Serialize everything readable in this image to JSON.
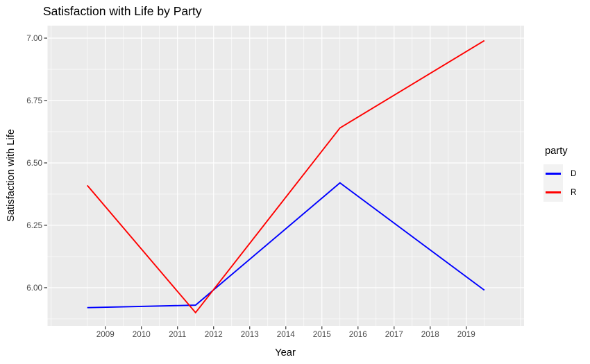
{
  "chart_data": {
    "type": "line",
    "title": "Satisfaction with Life by Party",
    "xlabel": "Year",
    "ylabel": "Satisfaction with Life",
    "x_ticks": [
      2009,
      2010,
      2011,
      2012,
      2013,
      2014,
      2015,
      2016,
      2017,
      2018,
      2019
    ],
    "x_minor_ticks": [
      2007.5,
      2008.5,
      2009.5,
      2010.5,
      2011.5,
      2012.5,
      2013.5,
      2014.5,
      2015.5,
      2016.5,
      2017.5,
      2018.5,
      2019.5,
      2020.5
    ],
    "y_ticks": [
      {
        "value": 6.0,
        "label": "6.00"
      },
      {
        "value": 6.25,
        "label": "6.25"
      },
      {
        "value": 6.5,
        "label": "6.50"
      },
      {
        "value": 6.75,
        "label": "6.75"
      },
      {
        "value": 7.0,
        "label": "7.00"
      }
    ],
    "y_minor_ticks": [
      5.875,
      6.125,
      6.375,
      6.625,
      6.875
    ],
    "xlim": [
      2007.4,
      2020.6
    ],
    "ylim": [
      5.847,
      7.05
    ],
    "grid": {
      "major": true,
      "minor": true
    },
    "series": [
      {
        "name": "D",
        "color": "#0000FF",
        "x": [
          2008.5,
          2011.5,
          2015.5,
          2019.5
        ],
        "y": [
          5.92,
          5.93,
          6.42,
          5.99
        ]
      },
      {
        "name": "R",
        "color": "#FF0000",
        "x": [
          2008.5,
          2011.5,
          2015.5,
          2019.5
        ],
        "y": [
          6.41,
          5.9,
          6.64,
          6.99
        ]
      }
    ],
    "legend": {
      "title": "party",
      "position": "right",
      "entries": [
        {
          "label": "D",
          "color": "#0000FF"
        },
        {
          "label": "R",
          "color": "#FF0000"
        }
      ]
    },
    "colors": {
      "panel_bg": "#EBEBEB",
      "grid": "#FFFFFF",
      "axis_text": "#4D4D4D",
      "tick_mark": "#333333",
      "legend_key_bg": "#F2F2F2",
      "title_text": "#000000"
    }
  }
}
